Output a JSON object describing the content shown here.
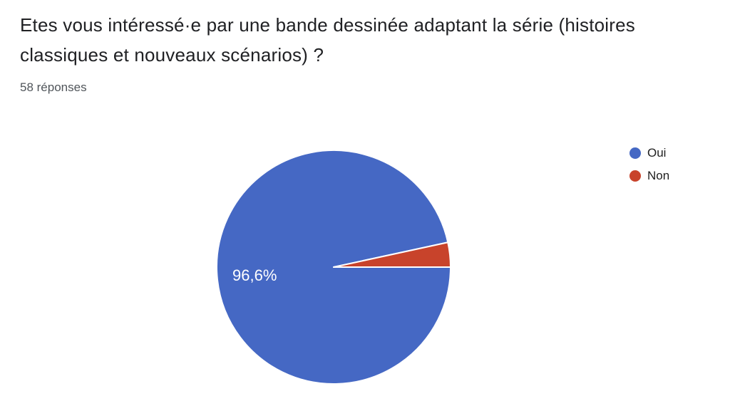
{
  "chart_data": {
    "type": "pie",
    "title": "Etes vous intéressé·e par une bande dessinée adaptant la série (histoires classiques et nouveaux scénarios) ?",
    "subtitle": "58 réponses",
    "labels": [
      "Oui",
      "Non"
    ],
    "values_percent": [
      96.6,
      3.4
    ],
    "displayed_percent_label": "96,6%",
    "colors": [
      "#4568C4",
      "#C8432B"
    ],
    "slice_border_color": "#ffffff",
    "legend_position": "right",
    "start_angle_deg": 0,
    "direction": "clockwise",
    "background": "#ffffff"
  }
}
